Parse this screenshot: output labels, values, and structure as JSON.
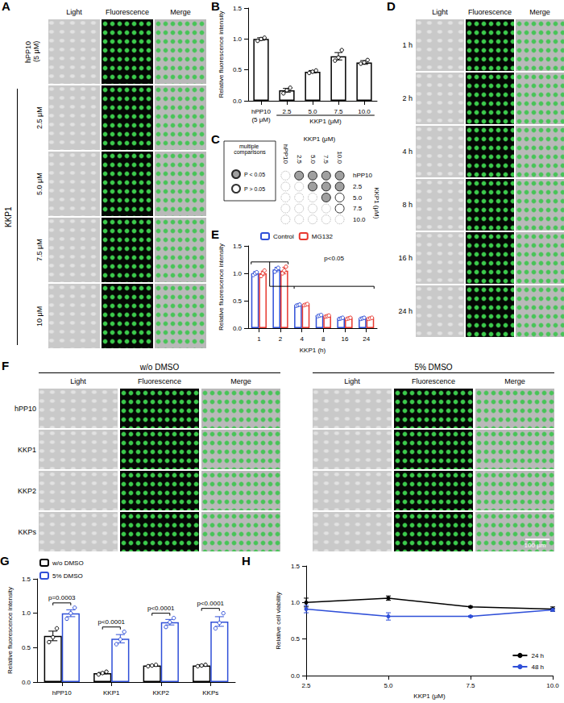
{
  "figure": {
    "panel_A": {
      "letter": "A",
      "columns": [
        "Light",
        "Fluorescence",
        "Merge"
      ],
      "rows": [
        {
          "group": [
            "hPP10",
            "(5 μM)"
          ]
        },
        {
          "group": [
            "KKP1"
          ],
          "rows": [
            "2.5 μM",
            "5.0 μM",
            "7.5 μM",
            "10 μM"
          ]
        }
      ]
    },
    "panel_D": {
      "letter": "D",
      "columns": [
        "Light",
        "Fluorescence",
        "Merge"
      ],
      "rows": [
        "1 h",
        "2 h",
        "4 h",
        "8 h",
        "16 h",
        "24 h"
      ]
    },
    "panel_F": {
      "letter": "F",
      "groups": [
        "w/o DMSO",
        "5% DMSO"
      ],
      "columns": [
        "Light",
        "Fluorescence",
        "Merge"
      ],
      "rows": [
        "hPP10",
        "KKP1",
        "KKP2",
        "KKPs"
      ],
      "scale_bar": "100 μm"
    }
  },
  "chart_data": [
    {
      "letter": "B",
      "type": "bar",
      "categories": [
        "hPP10\n(5 μM)",
        "2.5",
        "5.0",
        "7.5",
        "10.0"
      ],
      "x_label": "KKP1 (μM)",
      "y_label": "Relative fluorescence intensity",
      "ylim": [
        0,
        1.5
      ],
      "yticks": [
        {
          "value": 0,
          "label": "0.0"
        },
        {
          "value": 0.5,
          "label": "0.5"
        },
        {
          "value": 1,
          "label": "1.0"
        },
        {
          "value": 1.5,
          "label": "1.5"
        }
      ],
      "values": [
        1.0,
        0.17,
        0.47,
        0.72,
        0.62
      ],
      "errors": [
        0.02,
        0.03,
        0.02,
        0.06,
        0.03
      ],
      "points": [
        [
          0.97,
          1.0,
          1.02
        ],
        [
          0.12,
          0.17,
          0.21
        ],
        [
          0.45,
          0.47,
          0.49
        ],
        [
          0.65,
          0.7,
          0.82
        ],
        [
          0.6,
          0.62,
          0.66
        ]
      ],
      "color": "#000000",
      "grid": false
    },
    {
      "letter": "C",
      "type": "matrix",
      "title": "multiple comparisons",
      "x_label": "KKP1 (μM)",
      "categories": [
        "hPP10",
        "2.5",
        "5.0",
        "7.5",
        "10.0"
      ],
      "series": [
        {
          "name": "P < 0.05",
          "color": "#888888"
        },
        {
          "name": "P > 0.05",
          "color": "#ffffff"
        }
      ],
      "cells": [
        [
          null,
          true,
          true,
          true,
          true
        ],
        [
          null,
          null,
          true,
          true,
          true
        ],
        [
          null,
          null,
          null,
          true,
          false
        ],
        [
          null,
          null,
          null,
          null,
          false
        ],
        [
          null,
          null,
          null,
          null,
          null
        ]
      ]
    },
    {
      "letter": "E",
      "type": "bar",
      "categories": [
        "1",
        "2",
        "4",
        "8",
        "16",
        "24"
      ],
      "x_label": "KKP1 (h)",
      "y_label": "Relative fluorescence intensity",
      "ylim": [
        0,
        1.5
      ],
      "yticks": [
        {
          "value": 0,
          "label": "0.0"
        },
        {
          "value": 0.5,
          "label": "0.5"
        },
        {
          "value": 1,
          "label": "1.0"
        },
        {
          "value": 1.5,
          "label": "1.5"
        }
      ],
      "series": [
        {
          "name": "Control",
          "color": "#2f4fd8",
          "values": [
            1.0,
            1.07,
            0.42,
            0.23,
            0.18,
            0.18
          ],
          "errors": [
            0.03,
            0.04,
            0.01,
            0.01,
            0.01,
            0.01
          ],
          "points": [
            [
              0.97,
              1.0,
              1.02
            ],
            [
              1.03,
              1.08,
              1.1
            ],
            [
              0.41,
              0.42,
              0.43
            ],
            [
              0.22,
              0.23,
              0.24
            ],
            [
              0.17,
              0.18,
              0.19
            ],
            [
              0.17,
              0.18,
              0.19
            ]
          ]
        },
        {
          "name": "MG132",
          "color": "#e8382f",
          "values": [
            1.0,
            1.05,
            0.43,
            0.22,
            0.18,
            0.18
          ],
          "errors": [
            0.04,
            0.06,
            0.01,
            0.01,
            0.01,
            0.01
          ],
          "points": [
            [
              0.95,
              1.0,
              1.05
            ],
            [
              1.0,
              1.05,
              1.12
            ],
            [
              0.42,
              0.43,
              0.44
            ],
            [
              0.21,
              0.22,
              0.23
            ],
            [
              0.17,
              0.18,
              0.19
            ],
            [
              0.17,
              0.18,
              0.19
            ]
          ]
        }
      ],
      "comparison": {
        "text": "p<0.05",
        "groups": [
          [
            "1",
            "2"
          ],
          [
            "4",
            "8",
            "16",
            "24"
          ]
        ]
      },
      "legend": "top",
      "grid": false
    },
    {
      "letter": "G",
      "type": "bar",
      "categories": [
        "hPP10",
        "KKP1",
        "KKP2",
        "KKPs"
      ],
      "y_label": "Relative fluorescence intensity",
      "ylim": [
        0,
        1.5
      ],
      "yticks": [
        {
          "value": 0,
          "label": "0.0"
        },
        {
          "value": 0.5,
          "label": "0.5"
        },
        {
          "value": 1,
          "label": "1.0"
        },
        {
          "value": 1.5,
          "label": "1.5"
        }
      ],
      "series": [
        {
          "name": "w/o DMSO",
          "color": "#000000",
          "values": [
            0.67,
            0.13,
            0.24,
            0.24
          ],
          "errors": [
            0.07,
            0.01,
            0.01,
            0.01
          ],
          "points": [
            [
              0.58,
              0.65,
              0.78
            ],
            [
              0.11,
              0.13,
              0.15
            ],
            [
              0.23,
              0.24,
              0.25
            ],
            [
              0.23,
              0.24,
              0.25
            ]
          ]
        },
        {
          "name": "5% DMSO",
          "color": "#2f4fd8",
          "values": [
            1.0,
            0.63,
            0.87,
            0.88
          ],
          "errors": [
            0.05,
            0.06,
            0.04,
            0.07
          ],
          "points": [
            [
              0.92,
              1.0,
              1.08
            ],
            [
              0.55,
              0.62,
              0.73
            ],
            [
              0.8,
              0.87,
              0.93
            ],
            [
              0.78,
              0.86,
              1.0
            ]
          ]
        }
      ],
      "p_values": [
        "p=0.0003",
        "p<0.0001",
        "p<0.0001",
        "p<0.0001"
      ],
      "legend": "top-left",
      "grid": false
    },
    {
      "letter": "H",
      "type": "line",
      "x": [
        2.5,
        5.0,
        7.5,
        10.0
      ],
      "xlim": [
        2.5,
        10
      ],
      "xticks": [
        {
          "value": 2.5,
          "label": "2.5"
        },
        {
          "value": 5,
          "label": "5.0"
        },
        {
          "value": 7.5,
          "label": "7.5"
        },
        {
          "value": 10,
          "label": "10.0"
        }
      ],
      "x_label": "KKP1 (μM)",
      "y_label": "Relative cell viability",
      "ylim": [
        0,
        1.5
      ],
      "yticks": [
        {
          "value": 0,
          "label": "0.0"
        },
        {
          "value": 0.5,
          "label": "0.5"
        },
        {
          "value": 1,
          "label": "1.0"
        },
        {
          "value": 1.5,
          "label": "1.5"
        }
      ],
      "series": [
        {
          "name": "24 h",
          "color": "#000000",
          "values": [
            1.0,
            1.06,
            0.94,
            0.91
          ],
          "errors": [
            0.06,
            0.03,
            0.01,
            0.03
          ]
        },
        {
          "name": "48 h",
          "color": "#2f4fd8",
          "values": [
            0.91,
            0.81,
            0.81,
            0.9
          ],
          "errors": [
            0.05,
            0.05,
            0.01,
            0.02
          ]
        }
      ],
      "marker": "circle",
      "legend": "bottom-right",
      "grid": false
    }
  ]
}
